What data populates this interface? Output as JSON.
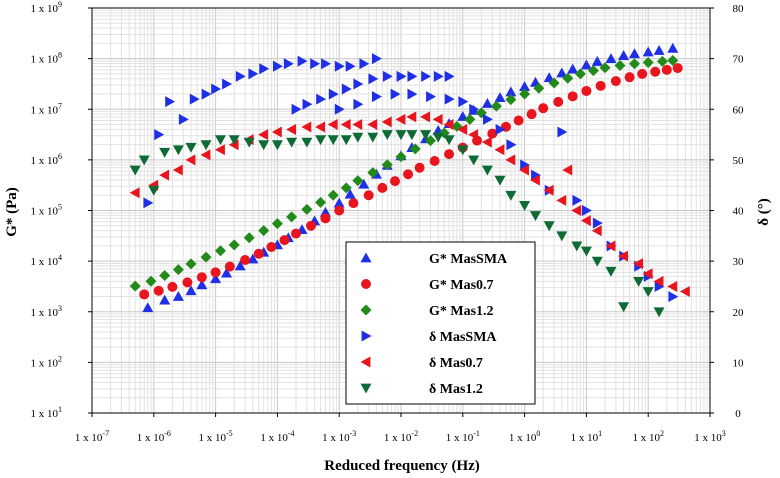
{
  "chart_data": {
    "type": "scatter",
    "xlabel": "Reduced frequency (Hz)",
    "ylabel_left": "G* (Pa)",
    "ylabel_right": "δ (°)",
    "x_scale": "log",
    "y_left_scale": "log",
    "xlim": [
      1e-07,
      1000
    ],
    "ylim_left": [
      10,
      1000000000.0
    ],
    "ylim_right": [
      0,
      80
    ],
    "grid": true,
    "legend_position": "lower-center",
    "x_ticks": [
      1e-07,
      1e-06,
      1e-05,
      0.0001,
      0.001,
      0.01,
      0.1,
      1,
      10,
      100,
      1000
    ],
    "x_tick_labels": [
      "1 x 10-7",
      "1 x 10-6",
      "1 x 10-5",
      "1 x 10-4",
      "1 x 10-3",
      "1 x 10-2",
      "1 x 10-1",
      "1 x 100",
      "1 x 101",
      "1 x 102",
      "1 x 103"
    ],
    "y_left_ticks": [
      10,
      100,
      1000,
      10000,
      100000,
      1000000,
      10000000,
      100000000,
      1000000000
    ],
    "y_left_tick_labels": [
      "1 x 101",
      "1 x 102",
      "1 x 103",
      "1 x 104",
      "1 x 105",
      "1 x 106",
      "1 x 107",
      "1 x 108",
      "1 x 109"
    ],
    "y_right_ticks": [
      0,
      10,
      20,
      30,
      40,
      50,
      60,
      70,
      80
    ],
    "y_right_tick_labels": [
      "0",
      "10",
      "20",
      "30",
      "40",
      "50",
      "60",
      "70",
      "80"
    ],
    "series": [
      {
        "name": "G* MasSMA",
        "axis": "left",
        "marker": "triangle-up",
        "color": "#1f2fe6",
        "points": [
          [
            8e-07,
            1200
          ],
          [
            1.5e-06,
            1700
          ],
          [
            2.5e-06,
            2000
          ],
          [
            4e-06,
            2600
          ],
          [
            6e-06,
            3400
          ],
          [
            1e-05,
            4500
          ],
          [
            1.5e-05,
            5800
          ],
          [
            2.5e-05,
            8000
          ],
          [
            4e-05,
            11000
          ],
          [
            6e-05,
            15000
          ],
          [
            0.0001,
            21000
          ],
          [
            0.00015,
            29000
          ],
          [
            0.00025,
            42000
          ],
          [
            0.0004,
            62000
          ],
          [
            0.0006,
            92000
          ],
          [
            0.001,
            140000
          ],
          [
            0.0015,
            210000
          ],
          [
            0.0025,
            330000
          ],
          [
            0.004,
            520000
          ],
          [
            0.006,
            780000
          ],
          [
            0.01,
            1200000
          ],
          [
            0.015,
            1750000
          ],
          [
            0.025,
            2600000
          ],
          [
            0.04,
            3800000
          ],
          [
            0.06,
            5200000
          ],
          [
            0.1,
            7200000
          ],
          [
            0.15,
            9500000
          ],
          [
            0.25,
            13000000
          ],
          [
            0.4,
            17000000
          ],
          [
            0.6,
            22000000
          ],
          [
            1,
            28000000
          ],
          [
            1.5,
            34000000
          ],
          [
            2.5,
            42000000
          ],
          [
            4,
            52000000
          ],
          [
            6,
            62000000
          ],
          [
            10,
            75000000
          ],
          [
            15,
            88000000
          ],
          [
            25,
            100000000
          ],
          [
            40,
            115000000
          ],
          [
            60,
            125000000
          ],
          [
            100,
            135000000
          ],
          [
            150,
            145000000
          ],
          [
            250,
            160000000
          ]
        ]
      },
      {
        "name": "G* Mas0.7",
        "axis": "left",
        "marker": "circle",
        "color": "#e8141e",
        "points": [
          [
            7e-07,
            2200
          ],
          [
            1.2e-06,
            2600
          ],
          [
            2e-06,
            3100
          ],
          [
            3.5e-06,
            3800
          ],
          [
            6e-06,
            4800
          ],
          [
            1e-05,
            6000
          ],
          [
            1.7e-05,
            7800
          ],
          [
            3e-05,
            10500
          ],
          [
            5e-05,
            14000
          ],
          [
            8e-05,
            19000
          ],
          [
            0.00013,
            26000
          ],
          [
            0.0002,
            35000
          ],
          [
            0.00035,
            50000
          ],
          [
            0.0006,
            70000
          ],
          [
            0.001,
            100000
          ],
          [
            0.0017,
            140000
          ],
          [
            0.003,
            200000
          ],
          [
            0.005,
            280000
          ],
          [
            0.008,
            380000
          ],
          [
            0.013,
            520000
          ],
          [
            0.02,
            700000
          ],
          [
            0.035,
            950000
          ],
          [
            0.06,
            1300000
          ],
          [
            0.1,
            1750000
          ],
          [
            0.17,
            2400000
          ],
          [
            0.3,
            3300000
          ],
          [
            0.5,
            4500000
          ],
          [
            0.8,
            6000000
          ],
          [
            1.3,
            8000000
          ],
          [
            2,
            10500000
          ],
          [
            3.5,
            14000000
          ],
          [
            6,
            18000000
          ],
          [
            10,
            23000000
          ],
          [
            17,
            29000000
          ],
          [
            30,
            36000000
          ],
          [
            50,
            43000000
          ],
          [
            80,
            50000000
          ],
          [
            130,
            55000000
          ],
          [
            200,
            60000000
          ],
          [
            300,
            65000000
          ]
        ]
      },
      {
        "name": "G* Mas1.2",
        "axis": "left",
        "marker": "diamond",
        "color": "#228a1a",
        "points": [
          [
            5e-07,
            3200
          ],
          [
            9e-07,
            4000
          ],
          [
            1.5e-06,
            5200
          ],
          [
            2.5e-06,
            6800
          ],
          [
            4e-06,
            8800
          ],
          [
            7e-06,
            12000
          ],
          [
            1.2e-05,
            16000
          ],
          [
            2e-05,
            21000
          ],
          [
            3.5e-05,
            29000
          ],
          [
            6e-05,
            40000
          ],
          [
            0.0001,
            55000
          ],
          [
            0.00017,
            75000
          ],
          [
            0.0003,
            105000
          ],
          [
            0.0005,
            145000
          ],
          [
            0.0008,
            200000
          ],
          [
            0.0013,
            280000
          ],
          [
            0.002,
            390000
          ],
          [
            0.0035,
            560000
          ],
          [
            0.006,
            800000
          ],
          [
            0.01,
            1150000
          ],
          [
            0.017,
            1650000
          ],
          [
            0.03,
            2400000
          ],
          [
            0.05,
            3400000
          ],
          [
            0.08,
            4600000
          ],
          [
            0.13,
            6300000
          ],
          [
            0.2,
            8500000
          ],
          [
            0.35,
            11500000
          ],
          [
            0.6,
            15500000
          ],
          [
            1,
            20000000
          ],
          [
            1.7,
            26000000
          ],
          [
            3,
            33000000
          ],
          [
            5,
            41000000
          ],
          [
            8,
            50000000
          ],
          [
            13,
            58000000
          ],
          [
            20,
            66000000
          ],
          [
            35,
            73000000
          ],
          [
            60,
            79000000
          ],
          [
            100,
            84000000
          ],
          [
            170,
            88000000
          ],
          [
            250,
            92000000
          ]
        ]
      },
      {
        "name": "δ MasSMA",
        "axis": "right",
        "marker": "triangle-right",
        "color": "#1f2fe6",
        "points": [
          [
            8e-07,
            41.5
          ],
          [
            1.2e-06,
            55
          ],
          [
            1.8e-06,
            61.5
          ],
          [
            3e-06,
            58
          ],
          [
            4.5e-06,
            62
          ],
          [
            7e-06,
            63
          ],
          [
            1e-05,
            64
          ],
          [
            1.5e-05,
            65
          ],
          [
            2.5e-05,
            66.5
          ],
          [
            4e-05,
            67
          ],
          [
            6e-05,
            68
          ],
          [
            0.0001,
            68.5
          ],
          [
            0.00015,
            69
          ],
          [
            0.00025,
            69.5
          ],
          [
            0.0004,
            69
          ],
          [
            0.0006,
            69
          ],
          [
            0.001,
            68.5
          ],
          [
            0.0015,
            68.5
          ],
          [
            0.0025,
            69
          ],
          [
            0.004,
            70
          ],
          [
            0.0002,
            60
          ],
          [
            0.0003,
            61
          ],
          [
            0.0005,
            62
          ],
          [
            0.0008,
            63
          ],
          [
            0.0013,
            64
          ],
          [
            0.002,
            65
          ],
          [
            0.0035,
            66
          ],
          [
            0.006,
            66.5
          ],
          [
            0.01,
            66.5
          ],
          [
            0.015,
            66.5
          ],
          [
            0.025,
            66.5
          ],
          [
            0.04,
            66.5
          ],
          [
            0.06,
            66.5
          ],
          [
            0.001,
            60
          ],
          [
            0.002,
            61
          ],
          [
            0.004,
            62.5
          ],
          [
            0.008,
            63
          ],
          [
            0.015,
            63
          ],
          [
            0.03,
            62.5
          ],
          [
            0.06,
            62
          ],
          [
            0.1,
            61.5
          ],
          [
            0.15,
            60
          ],
          [
            0.25,
            58
          ],
          [
            0.4,
            56
          ],
          [
            0.6,
            53
          ],
          [
            1,
            49
          ],
          [
            1.5,
            47
          ],
          [
            2.5,
            44
          ],
          [
            4,
            55.5
          ],
          [
            7,
            42
          ],
          [
            10,
            40
          ],
          [
            15,
            37.5
          ],
          [
            25,
            33
          ],
          [
            40,
            31
          ],
          [
            70,
            29
          ],
          [
            100,
            27
          ],
          [
            150,
            25
          ],
          [
            250,
            23
          ]
        ]
      },
      {
        "name": "δ Mas0.7",
        "axis": "right",
        "marker": "triangle-left",
        "color": "#e8141e",
        "points": [
          [
            5e-07,
            43.5
          ],
          [
            1e-06,
            45
          ],
          [
            1.5e-06,
            47
          ],
          [
            2.5e-06,
            48
          ],
          [
            4e-06,
            50
          ],
          [
            7e-06,
            51
          ],
          [
            1.2e-05,
            52
          ],
          [
            2e-05,
            53
          ],
          [
            3.5e-05,
            54
          ],
          [
            6e-05,
            55
          ],
          [
            0.0001,
            55.5
          ],
          [
            0.00017,
            56
          ],
          [
            0.0003,
            56.5
          ],
          [
            0.0005,
            56.5
          ],
          [
            0.0008,
            57
          ],
          [
            0.0013,
            57
          ],
          [
            0.002,
            57
          ],
          [
            0.0035,
            57
          ],
          [
            0.006,
            57.5
          ],
          [
            0.01,
            58
          ],
          [
            0.015,
            58.5
          ],
          [
            0.025,
            58.5
          ],
          [
            0.04,
            58
          ],
          [
            0.06,
            57
          ],
          [
            0.1,
            56
          ],
          [
            0.15,
            55
          ],
          [
            0.25,
            53.5
          ],
          [
            0.4,
            52
          ],
          [
            0.6,
            50
          ],
          [
            1,
            48
          ],
          [
            1.5,
            46
          ],
          [
            2.5,
            44
          ],
          [
            4,
            42
          ],
          [
            5,
            48
          ],
          [
            7,
            40
          ],
          [
            10,
            38
          ],
          [
            15,
            36
          ],
          [
            25,
            33
          ],
          [
            40,
            31
          ],
          [
            70,
            29.5
          ],
          [
            100,
            27.5
          ],
          [
            150,
            26
          ],
          [
            250,
            25
          ],
          [
            400,
            24
          ]
        ]
      },
      {
        "name": "δ Mas1.2",
        "axis": "right",
        "marker": "triangle-down",
        "color": "#0f6b35",
        "points": [
          [
            5e-07,
            48
          ],
          [
            7e-07,
            50
          ],
          [
            1e-06,
            44
          ],
          [
            1.5e-06,
            51.5
          ],
          [
            2.5e-06,
            52
          ],
          [
            4e-06,
            52.5
          ],
          [
            7e-06,
            53
          ],
          [
            1.2e-05,
            54
          ],
          [
            2e-05,
            54
          ],
          [
            3.5e-05,
            53.5
          ],
          [
            6e-05,
            53
          ],
          [
            0.0001,
            53
          ],
          [
            0.00017,
            53.5
          ],
          [
            0.0003,
            53.5
          ],
          [
            0.0005,
            54
          ],
          [
            0.0008,
            54
          ],
          [
            0.0013,
            54
          ],
          [
            0.002,
            54.5
          ],
          [
            0.0035,
            54.5
          ],
          [
            0.006,
            55
          ],
          [
            0.01,
            55
          ],
          [
            0.015,
            55
          ],
          [
            0.025,
            55
          ],
          [
            0.04,
            54.5
          ],
          [
            0.06,
            54
          ],
          [
            0.1,
            52
          ],
          [
            0.15,
            50
          ],
          [
            0.25,
            48
          ],
          [
            0.4,
            46
          ],
          [
            0.6,
            43
          ],
          [
            1,
            41
          ],
          [
            1.5,
            39
          ],
          [
            2.5,
            37
          ],
          [
            4,
            35
          ],
          [
            7,
            33
          ],
          [
            10,
            32
          ],
          [
            15,
            30
          ],
          [
            25,
            28
          ],
          [
            40,
            21
          ],
          [
            70,
            26
          ],
          [
            100,
            24
          ],
          [
            150,
            20
          ]
        ]
      }
    ]
  }
}
